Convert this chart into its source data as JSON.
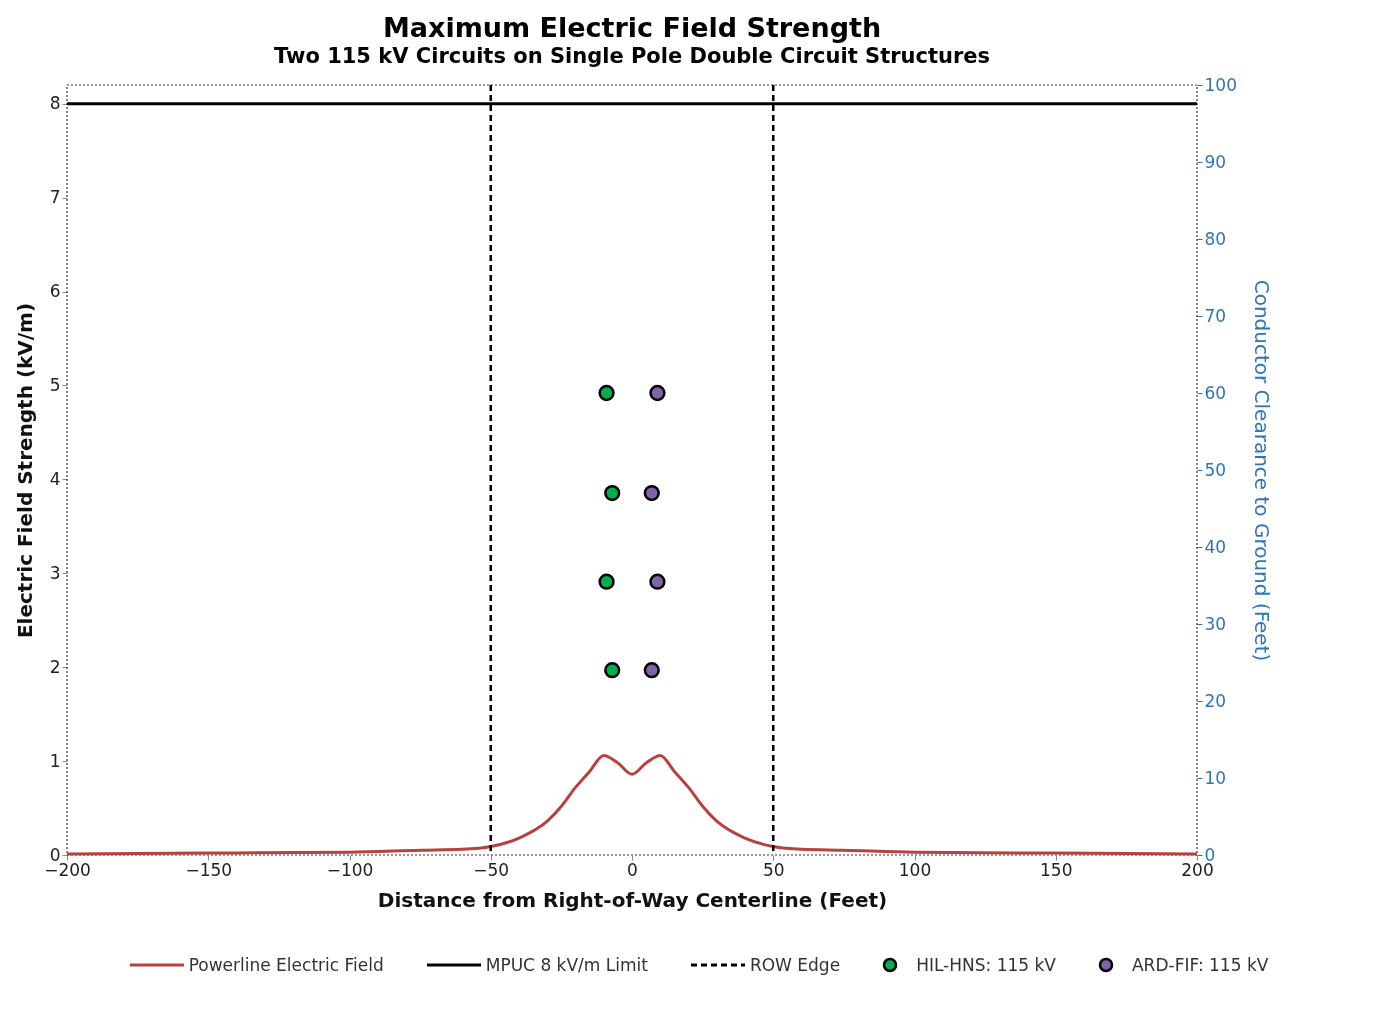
{
  "chart_data": {
    "type": "line",
    "title": "Maximum Electric Field Strength",
    "subtitle": "Two 115 kV Circuits on Single Pole Double Circuit Structures",
    "xlabel": "Distance from Right-of-Way Centerline (Feet)",
    "ylabel": "Electric Field Strength (kV/m)",
    "y2label": "Conductor Clearance to Ground (Feet)",
    "xlim": [
      -200,
      200
    ],
    "xticks": [
      -200,
      -150,
      -100,
      -50,
      0,
      50,
      100,
      150,
      200
    ],
    "ylim": [
      0,
      8.2
    ],
    "yticks": [
      0,
      1,
      2,
      3,
      4,
      5,
      6,
      7,
      8
    ],
    "y2lim": [
      0,
      100
    ],
    "y2ticks": [
      0,
      10,
      20,
      30,
      40,
      50,
      60,
      70,
      80,
      90,
      100
    ],
    "grid": false,
    "legend": "bottom",
    "series": [
      {
        "name": "Powerline Electric Field",
        "type": "line",
        "color": "#b8413f",
        "x": [
          -200,
          -150,
          -100,
          -75,
          -60,
          -50,
          -40,
          -30,
          -25,
          -20,
          -15,
          -10,
          -5,
          0,
          5,
          10,
          15,
          20,
          25,
          30,
          40,
          50,
          60,
          75,
          100,
          150,
          200
        ],
        "values": [
          0.01,
          0.02,
          0.03,
          0.05,
          0.06,
          0.09,
          0.18,
          0.36,
          0.52,
          0.72,
          0.89,
          1.06,
          0.98,
          0.86,
          0.98,
          1.06,
          0.89,
          0.72,
          0.52,
          0.36,
          0.18,
          0.09,
          0.06,
          0.05,
          0.03,
          0.02,
          0.01
        ]
      },
      {
        "name": "MPUC 8 kV/m Limit",
        "type": "line",
        "color": "#000000",
        "x": [
          -200,
          200
        ],
        "values": [
          8,
          8
        ]
      },
      {
        "name": "HIL-HNS: 115 kV",
        "type": "scatter",
        "axis": "y2",
        "color": "#00b050",
        "marker": "circle",
        "x": [
          -9,
          -7,
          -9,
          -7
        ],
        "values": [
          60,
          47,
          35.5,
          24
        ]
      },
      {
        "name": "ARD-FIF: 115 kV",
        "type": "scatter",
        "axis": "y2",
        "color": "#7f62a8",
        "marker": "circle",
        "x": [
          9,
          7,
          9,
          7
        ],
        "values": [
          60,
          47,
          35.5,
          24
        ]
      }
    ],
    "ref_lines": [
      {
        "axis": "x",
        "value": -50,
        "label": "ROW Edge",
        "color": "#000000",
        "line_style": "dashed"
      },
      {
        "axis": "x",
        "value": 50,
        "color": "#000000",
        "line_style": "dashed"
      }
    ]
  }
}
